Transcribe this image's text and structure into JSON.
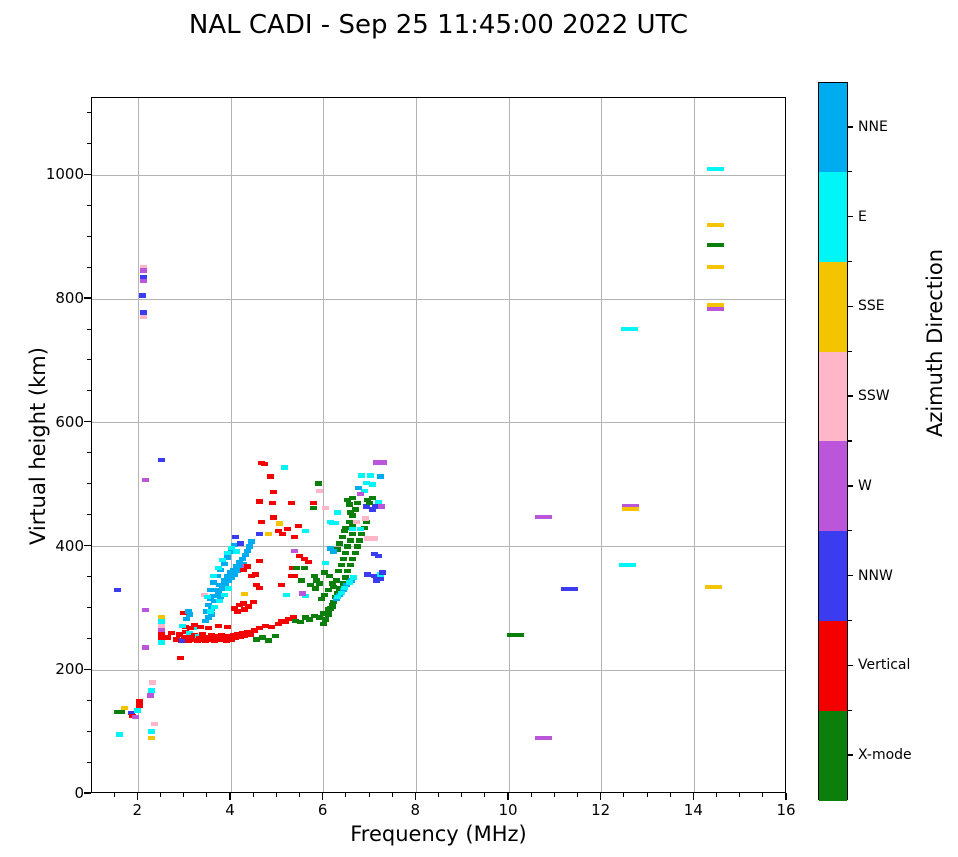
{
  "title": "NAL CADI - Sep 25 11:45:00 2022 UTC",
  "chart_data": {
    "type": "scatter",
    "title": "NAL CADI - Sep 25 11:45:00 2022 UTC",
    "xlabel": "Frequency (MHz)",
    "ylabel": "Virtual height (km)",
    "xlim": [
      1,
      16
    ],
    "ylim": [
      0,
      1125
    ],
    "xticks": [
      2,
      4,
      6,
      8,
      10,
      12,
      14,
      16
    ],
    "yticks": [
      0,
      200,
      400,
      600,
      800,
      1000
    ],
    "x_minor_step": 0.5,
    "y_minor_step": 50,
    "grid": true,
    "grid_color": "#b4b4b4",
    "point_units": {
      "x": "MHz",
      "y": "km"
    },
    "legend": {
      "type": "colorbar",
      "label": "Azimuth Direction",
      "position": "right",
      "categories_top_to_bottom": [
        "NNE",
        "E",
        "SSE",
        "SSW",
        "W",
        "NNW",
        "Vertical",
        "X-mode"
      ]
    },
    "categories": [
      {
        "name": "NNE",
        "color": "#00ACF0"
      },
      {
        "name": "E",
        "color": "#00F6F6"
      },
      {
        "name": "SSE",
        "color": "#F5C400"
      },
      {
        "name": "SSW",
        "color": "#FFB6C8"
      },
      {
        "name": "W",
        "color": "#BB55D9"
      },
      {
        "name": "NNW",
        "color": "#3B3BEF"
      },
      {
        "name": "Vertical",
        "color": "#F40000"
      },
      {
        "name": "X-mode",
        "color": "#0B7E0B"
      }
    ],
    "points": [
      [
        1.6,
        96,
        1
      ],
      [
        1.55,
        133,
        7
      ],
      [
        1.63,
        133,
        7
      ],
      [
        1.7,
        139,
        2
      ],
      [
        1.85,
        131,
        5
      ],
      [
        1.88,
        126,
        6
      ],
      [
        1.93,
        124,
        4
      ],
      [
        2.03,
        150,
        6
      ],
      [
        2.03,
        143,
        6
      ],
      [
        1.98,
        135,
        1
      ],
      [
        2.3,
        180,
        3
      ],
      [
        2.28,
        167,
        1
      ],
      [
        2.27,
        159,
        4
      ],
      [
        2.35,
        113,
        3
      ],
      [
        2.28,
        101,
        1
      ],
      [
        2.28,
        91,
        2
      ],
      [
        1.55,
        330,
        5
      ],
      [
        2.15,
        508,
        4
      ],
      [
        2.5,
        540,
        5
      ],
      [
        2.15,
        297,
        4
      ],
      [
        2.15,
        237,
        4
      ],
      [
        2.12,
        852,
        3
      ],
      [
        2.12,
        846,
        4
      ],
      [
        2.12,
        835,
        5
      ],
      [
        2.12,
        829,
        4
      ],
      [
        2.1,
        806,
        5
      ],
      [
        2.12,
        778,
        5
      ],
      [
        2.12,
        771,
        3
      ],
      [
        2.5,
        286,
        2
      ],
      [
        2.5,
        279,
        1
      ],
      [
        2.5,
        272,
        3
      ],
      [
        2.5,
        265,
        4
      ],
      [
        2.5,
        259,
        6
      ],
      [
        2.5,
        252,
        6
      ],
      [
        2.5,
        245,
        1
      ],
      [
        2.62,
        253,
        6
      ],
      [
        2.72,
        260,
        6
      ],
      [
        2.9,
        220,
        6
      ],
      [
        2.82,
        250,
        6
      ],
      [
        2.88,
        258,
        6
      ],
      [
        2.93,
        247,
        6
      ],
      [
        2.95,
        248,
        5
      ],
      [
        3.0,
        254,
        6
      ],
      [
        3.02,
        262,
        6
      ],
      [
        3.08,
        247,
        6
      ],
      [
        3.1,
        260,
        1
      ],
      [
        3.12,
        254,
        6
      ],
      [
        3.18,
        250,
        6
      ],
      [
        3.2,
        268,
        1
      ],
      [
        3.22,
        257,
        6
      ],
      [
        3.28,
        248,
        6
      ],
      [
        3.3,
        255,
        1
      ],
      [
        3.32,
        252,
        6
      ],
      [
        3.38,
        258,
        6
      ],
      [
        3.42,
        250,
        6
      ],
      [
        3.45,
        247,
        6
      ],
      [
        3.5,
        254,
        6
      ],
      [
        3.55,
        250,
        6
      ],
      [
        3.58,
        257,
        6
      ],
      [
        3.62,
        252,
        6
      ],
      [
        3.65,
        248,
        6
      ],
      [
        3.7,
        255,
        6
      ],
      [
        3.75,
        250,
        6
      ],
      [
        3.8,
        257,
        6
      ],
      [
        3.85,
        252,
        6
      ],
      [
        3.9,
        248,
        6
      ],
      [
        3.95,
        255,
        6
      ],
      [
        4.0,
        250,
        6
      ],
      [
        4.05,
        257,
        6
      ],
      [
        4.1,
        252,
        6
      ],
      [
        4.15,
        258,
        6
      ],
      [
        4.2,
        254,
        6
      ],
      [
        4.25,
        260,
        6
      ],
      [
        4.3,
        256,
        6
      ],
      [
        4.35,
        262,
        6
      ],
      [
        4.42,
        258,
        6
      ],
      [
        4.5,
        264,
        6
      ],
      [
        4.55,
        250,
        7
      ],
      [
        4.62,
        268,
        6
      ],
      [
        4.68,
        253,
        7
      ],
      [
        4.75,
        272,
        6
      ],
      [
        4.82,
        248,
        7
      ],
      [
        4.88,
        270,
        6
      ],
      [
        4.95,
        255,
        7
      ],
      [
        5.02,
        275,
        6
      ],
      [
        5.1,
        280,
        6
      ],
      [
        5.18,
        278,
        6
      ],
      [
        5.25,
        283,
        6
      ],
      [
        5.35,
        285,
        6
      ],
      [
        3.02,
        270,
        6
      ],
      [
        3.12,
        268,
        6
      ],
      [
        3.22,
        273,
        6
      ],
      [
        3.35,
        270,
        6
      ],
      [
        3.52,
        268,
        6
      ],
      [
        3.72,
        272,
        6
      ],
      [
        3.92,
        270,
        6
      ],
      [
        3.05,
        283,
        0
      ],
      [
        3.1,
        290,
        0
      ],
      [
        2.95,
        272,
        1
      ],
      [
        3.45,
        280,
        0
      ],
      [
        3.42,
        322,
        3
      ],
      [
        4.08,
        300,
        6
      ],
      [
        4.18,
        305,
        6
      ],
      [
        4.28,
        308,
        6
      ],
      [
        4.38,
        303,
        6
      ],
      [
        4.48,
        310,
        6
      ],
      [
        4.15,
        295,
        6
      ],
      [
        4.3,
        298,
        6
      ],
      [
        2.98,
        293,
        6
      ],
      [
        3.08,
        295,
        0
      ],
      [
        3.48,
        295,
        0
      ],
      [
        3.52,
        305,
        0
      ],
      [
        3.55,
        315,
        0
      ],
      [
        3.58,
        300,
        0
      ],
      [
        3.62,
        320,
        0
      ],
      [
        3.65,
        312,
        0
      ],
      [
        3.68,
        330,
        0
      ],
      [
        3.72,
        325,
        0
      ],
      [
        3.75,
        338,
        0
      ],
      [
        3.78,
        318,
        0
      ],
      [
        3.82,
        332,
        0
      ],
      [
        3.85,
        345,
        0
      ],
      [
        3.88,
        338,
        0
      ],
      [
        3.92,
        352,
        0
      ],
      [
        3.95,
        344,
        0
      ],
      [
        3.98,
        358,
        0
      ],
      [
        4.02,
        350,
        0
      ],
      [
        4.05,
        362,
        0
      ],
      [
        4.08,
        355,
        0
      ],
      [
        4.12,
        368,
        0
      ],
      [
        4.15,
        360,
        0
      ],
      [
        4.18,
        374,
        0
      ],
      [
        4.22,
        366,
        0
      ],
      [
        4.25,
        380,
        0
      ],
      [
        4.28,
        372,
        0
      ],
      [
        4.32,
        386,
        0
      ],
      [
        4.35,
        393,
        0
      ],
      [
        4.4,
        400,
        0
      ],
      [
        4.45,
        408,
        0
      ],
      [
        3.55,
        330,
        0
      ],
      [
        3.62,
        342,
        0
      ],
      [
        3.7,
        352,
        0
      ],
      [
        3.78,
        362,
        0
      ],
      [
        3.85,
        372,
        0
      ],
      [
        3.92,
        382,
        0
      ],
      [
        4.0,
        392,
        0
      ],
      [
        4.08,
        402,
        0
      ],
      [
        3.52,
        285,
        0
      ],
      [
        3.58,
        290,
        0
      ],
      [
        3.55,
        295,
        1
      ],
      [
        3.65,
        302,
        1
      ],
      [
        3.75,
        312,
        1
      ],
      [
        3.85,
        322,
        1
      ],
      [
        3.95,
        332,
        1
      ],
      [
        3.62,
        352,
        1
      ],
      [
        3.72,
        365,
        1
      ],
      [
        3.82,
        378,
        1
      ],
      [
        3.92,
        390,
        1
      ],
      [
        4.02,
        398,
        1
      ],
      [
        3.5,
        318,
        1
      ],
      [
        4.12,
        392,
        1
      ],
      [
        4.1,
        415,
        5
      ],
      [
        4.2,
        405,
        5
      ],
      [
        4.32,
        368,
        4
      ],
      [
        4.3,
        323,
        2
      ],
      [
        4.65,
        535,
        6
      ],
      [
        4.72,
        533,
        6
      ],
      [
        5.15,
        528,
        1
      ],
      [
        4.85,
        513,
        6
      ],
      [
        4.92,
        488,
        6
      ],
      [
        4.62,
        473,
        6
      ],
      [
        4.9,
        470,
        6
      ],
      [
        5.3,
        470,
        6
      ],
      [
        5.78,
        470,
        6
      ],
      [
        5.88,
        502,
        7
      ],
      [
        5.92,
        490,
        3
      ],
      [
        6.05,
        462,
        3
      ],
      [
        5.78,
        462,
        7
      ],
      [
        6.3,
        455,
        1
      ],
      [
        6.2,
        438,
        1
      ],
      [
        4.65,
        440,
        6
      ],
      [
        4.92,
        447,
        6
      ],
      [
        5.45,
        433,
        6
      ],
      [
        5.02,
        425,
        6
      ],
      [
        5.12,
        420,
        6
      ],
      [
        5.22,
        428,
        6
      ],
      [
        5.38,
        415,
        6
      ],
      [
        4.62,
        420,
        5
      ],
      [
        4.8,
        420,
        2
      ],
      [
        5.05,
        437,
        2
      ],
      [
        5.6,
        425,
        1
      ],
      [
        5.38,
        393,
        4
      ],
      [
        5.48,
        385,
        6
      ],
      [
        5.58,
        380,
        6
      ],
      [
        5.68,
        375,
        6
      ],
      [
        4.62,
        377,
        6
      ],
      [
        4.45,
        352,
        6
      ],
      [
        4.52,
        355,
        6
      ],
      [
        5.38,
        352,
        6
      ],
      [
        5.32,
        365,
        6
      ],
      [
        5.42,
        365,
        7
      ],
      [
        5.52,
        345,
        7
      ],
      [
        4.55,
        338,
        6
      ],
      [
        4.62,
        333,
        6
      ],
      [
        5.1,
        338,
        6
      ],
      [
        5.3,
        352,
        6
      ],
      [
        5.2,
        322,
        1
      ],
      [
        5.6,
        320,
        1
      ],
      [
        5.55,
        324,
        4
      ],
      [
        6.05,
        373,
        1
      ],
      [
        4.35,
        368,
        6
      ],
      [
        4.28,
        362,
        6
      ],
      [
        5.4,
        280,
        7
      ],
      [
        5.5,
        278,
        7
      ],
      [
        5.6,
        285,
        7
      ],
      [
        5.7,
        282,
        7
      ],
      [
        5.8,
        288,
        7
      ],
      [
        5.9,
        285,
        7
      ],
      [
        6.0,
        292,
        7
      ],
      [
        6.05,
        282,
        7
      ],
      [
        6.1,
        298,
        7
      ],
      [
        6.0,
        275,
        7
      ],
      [
        6.15,
        300,
        7
      ],
      [
        6.2,
        305,
        7
      ],
      [
        6.1,
        290,
        7
      ],
      [
        5.82,
        332,
        7
      ],
      [
        5.85,
        345,
        7
      ],
      [
        5.92,
        340,
        7
      ],
      [
        5.72,
        338,
        7
      ],
      [
        5.58,
        365,
        7
      ],
      [
        5.8,
        352,
        7
      ],
      [
        6.02,
        358,
        7
      ],
      [
        6.12,
        352,
        7
      ],
      [
        6.18,
        340,
        7
      ],
      [
        6.1,
        330,
        7
      ],
      [
        6.02,
        322,
        7
      ],
      [
        5.95,
        315,
        7
      ],
      [
        6.22,
        335,
        7
      ],
      [
        6.28,
        345,
        7
      ],
      [
        6.32,
        360,
        7
      ],
      [
        6.38,
        370,
        7
      ],
      [
        6.42,
        380,
        7
      ],
      [
        6.48,
        390,
        7
      ],
      [
        6.52,
        400,
        7
      ],
      [
        6.58,
        410,
        7
      ],
      [
        6.62,
        420,
        7
      ],
      [
        6.48,
        430,
        7
      ],
      [
        6.55,
        440,
        7
      ],
      [
        6.62,
        450,
        7
      ],
      [
        6.68,
        460,
        7
      ],
      [
        6.72,
        470,
        7
      ],
      [
        6.45,
        425,
        7
      ],
      [
        6.4,
        415,
        7
      ],
      [
        6.35,
        405,
        7
      ],
      [
        6.3,
        395,
        7
      ],
      [
        6.58,
        455,
        7
      ],
      [
        6.62,
        435,
        7
      ],
      [
        6.25,
        318,
        7
      ],
      [
        6.3,
        325,
        7
      ],
      [
        6.35,
        332,
        7
      ],
      [
        6.42,
        340,
        7
      ],
      [
        6.48,
        350,
        7
      ],
      [
        6.52,
        360,
        7
      ],
      [
        6.58,
        370,
        7
      ],
      [
        6.62,
        380,
        7
      ],
      [
        6.68,
        390,
        7
      ],
      [
        6.72,
        400,
        7
      ],
      [
        6.78,
        410,
        7
      ],
      [
        6.82,
        420,
        7
      ],
      [
        6.88,
        430,
        7
      ],
      [
        6.92,
        440,
        7
      ],
      [
        6.52,
        475,
        7
      ],
      [
        6.62,
        478,
        7
      ],
      [
        6.95,
        475,
        7
      ],
      [
        6.55,
        468,
        7
      ],
      [
        6.22,
        310,
        7
      ],
      [
        6.18,
        302,
        7
      ],
      [
        6.82,
        515,
        1
      ],
      [
        7.02,
        515,
        1
      ],
      [
        7.22,
        513,
        0
      ],
      [
        6.92,
        503,
        1
      ],
      [
        7.05,
        500,
        1
      ],
      [
        6.88,
        490,
        1
      ],
      [
        6.75,
        495,
        0
      ],
      [
        6.8,
        485,
        4
      ],
      [
        6.62,
        428,
        1
      ],
      [
        6.8,
        428,
        1
      ],
      [
        6.7,
        440,
        3
      ],
      [
        6.9,
        445,
        3
      ],
      [
        6.95,
        413,
        3
      ],
      [
        7.1,
        413,
        3
      ],
      [
        6.92,
        465,
        5
      ],
      [
        7.12,
        465,
        5
      ],
      [
        7.25,
        465,
        4
      ],
      [
        7.15,
        536,
        4
      ],
      [
        7.3,
        536,
        4
      ],
      [
        7.1,
        388,
        5
      ],
      [
        7.18,
        385,
        5
      ],
      [
        6.95,
        355,
        5
      ],
      [
        7.1,
        352,
        5
      ],
      [
        7.22,
        348,
        5
      ],
      [
        7.15,
        345,
        5
      ],
      [
        6.6,
        345,
        0
      ],
      [
        6.5,
        338,
        0
      ],
      [
        6.42,
        330,
        0
      ],
      [
        6.35,
        322,
        0
      ],
      [
        6.28,
        315,
        0
      ],
      [
        6.55,
        342,
        1
      ],
      [
        6.45,
        333,
        1
      ],
      [
        6.38,
        325,
        1
      ],
      [
        6.3,
        318,
        1
      ],
      [
        6.65,
        350,
        1
      ],
      [
        6.15,
        440,
        1
      ],
      [
        6.25,
        438,
        1
      ],
      [
        7.05,
        478,
        7
      ],
      [
        6.98,
        470,
        7
      ],
      [
        6.15,
        397,
        0
      ],
      [
        6.22,
        392,
        0
      ],
      [
        7.22,
        355,
        1
      ],
      [
        7.28,
        358,
        5
      ],
      [
        7.18,
        472,
        1
      ],
      [
        7.05,
        460,
        5
      ],
      [
        10.15,
        257,
        7,
        1
      ],
      [
        10.75,
        447,
        4,
        1
      ],
      [
        10.75,
        91,
        4,
        1
      ],
      [
        11.3,
        332,
        5,
        1
      ],
      [
        12.6,
        752,
        1,
        1
      ],
      [
        12.62,
        466,
        4,
        1
      ],
      [
        12.62,
        461,
        2,
        1
      ],
      [
        12.55,
        370,
        1,
        1
      ],
      [
        14.45,
        1010,
        1,
        1
      ],
      [
        14.45,
        920,
        2,
        1
      ],
      [
        14.45,
        888,
        7,
        1
      ],
      [
        14.45,
        852,
        2,
        1
      ],
      [
        14.45,
        790,
        2,
        1
      ],
      [
        14.45,
        784,
        4,
        1
      ],
      [
        14.42,
        335,
        2,
        1
      ]
    ]
  }
}
